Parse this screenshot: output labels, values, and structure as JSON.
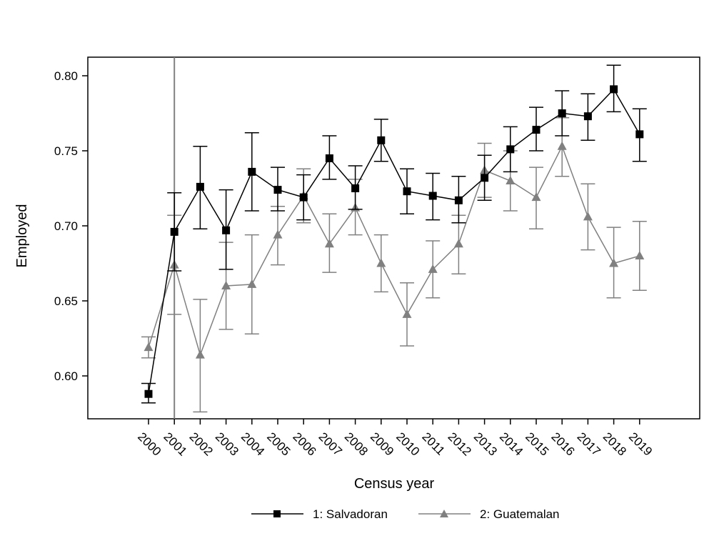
{
  "chart_data": {
    "type": "line",
    "xlabel": "Census year",
    "ylabel": "Employed",
    "ylim": [
      0.57,
      0.812
    ],
    "x": [
      2000,
      2001,
      2002,
      2003,
      2004,
      2005,
      2006,
      2007,
      2008,
      2009,
      2010,
      2011,
      2012,
      2013,
      2014,
      2015,
      2016,
      2017,
      2018,
      2019
    ],
    "x_tick_labels": [
      "2000",
      "2001",
      "2002",
      "2003",
      "2004",
      "2005",
      "2006",
      "2007",
      "2008",
      "2009",
      "2010",
      "2011",
      "2012",
      "2013",
      "2014",
      "2015",
      "2016",
      "2017",
      "2018",
      "2019"
    ],
    "y_ticks": [
      0.6,
      0.65,
      0.7,
      0.75,
      0.8
    ],
    "y_tick_labels": [
      "0.60",
      "0.65",
      "0.70",
      "0.75",
      "0.80"
    ],
    "reference_line_x": 2001,
    "legend_position": "bottom",
    "series": [
      {
        "name": "1: Salvadoran",
        "color": "#000000",
        "marker": "square",
        "values": [
          0.588,
          0.696,
          0.726,
          0.697,
          0.736,
          0.724,
          0.719,
          0.745,
          0.725,
          0.757,
          0.723,
          0.72,
          0.717,
          0.732,
          0.751,
          0.764,
          0.775,
          0.773,
          0.791,
          0.761
        ],
        "ci_low": [
          0.582,
          0.67,
          0.698,
          0.671,
          0.71,
          0.71,
          0.704,
          0.731,
          0.711,
          0.743,
          0.708,
          0.704,
          0.702,
          0.717,
          0.736,
          0.75,
          0.76,
          0.757,
          0.776,
          0.743
        ],
        "ci_high": [
          0.595,
          0.722,
          0.753,
          0.724,
          0.762,
          0.739,
          0.734,
          0.76,
          0.74,
          0.771,
          0.738,
          0.735,
          0.733,
          0.747,
          0.766,
          0.779,
          0.79,
          0.788,
          0.807,
          0.778
        ]
      },
      {
        "name": "2: Guatemalan",
        "color": "#808080",
        "marker": "triangle",
        "values": [
          0.619,
          0.674,
          0.614,
          0.66,
          0.661,
          0.694,
          0.72,
          0.688,
          0.712,
          0.675,
          0.641,
          0.671,
          0.688,
          0.737,
          0.73,
          0.719,
          0.753,
          0.706,
          0.675,
          0.68
        ],
        "ci_low": [
          0.612,
          0.641,
          0.576,
          0.631,
          0.628,
          0.674,
          0.702,
          0.669,
          0.694,
          0.656,
          0.62,
          0.652,
          0.668,
          0.719,
          0.71,
          0.698,
          0.733,
          0.684,
          0.652,
          0.657
        ],
        "ci_high": [
          0.626,
          0.707,
          0.651,
          0.689,
          0.694,
          0.713,
          0.738,
          0.708,
          0.731,
          0.694,
          0.662,
          0.69,
          0.707,
          0.755,
          0.75,
          0.739,
          0.772,
          0.728,
          0.699,
          0.703
        ]
      }
    ]
  }
}
